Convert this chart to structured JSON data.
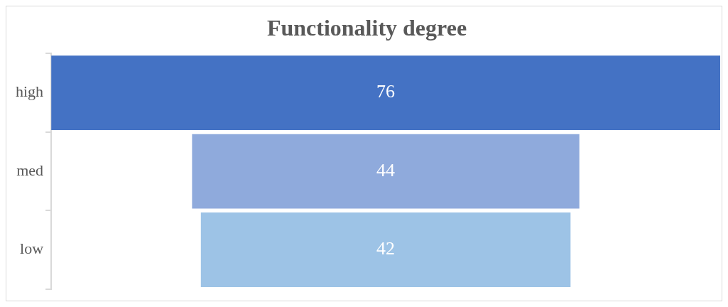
{
  "chart_data": {
    "type": "other",
    "title": "Functionality degree",
    "categories": [
      "high",
      "med",
      "low"
    ],
    "values": [
      76,
      44,
      42
    ],
    "colors": [
      "#4472c4",
      "#8faadc",
      "#9dc3e6"
    ],
    "data_labels": true
  }
}
